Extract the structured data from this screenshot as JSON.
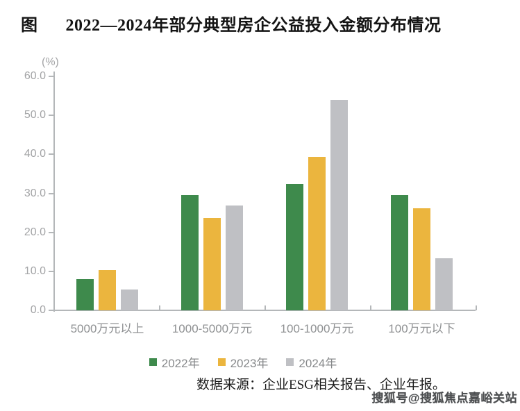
{
  "title": {
    "prefix": "图",
    "text": "2022—2024年部分典型房企公益投入金额分布情况"
  },
  "source_text": "数据来源：企业ESG相关报告、企业年报。",
  "watermark_text": "搜狐号@搜狐焦点嘉峪关站",
  "chart_data": {
    "type": "bar",
    "title": "2022—2024年部分典型房企公益投入金额分布情况",
    "unit_label": "(%)",
    "xlabel": "",
    "ylabel": "(%)",
    "categories": [
      "5000万元以上",
      "1000-5000万元",
      "100-1000万元",
      "100万元以下"
    ],
    "series": [
      {
        "name": "2022年",
        "color": "#3E8A4C",
        "values": [
          8.0,
          29.5,
          32.4,
          29.5
        ]
      },
      {
        "name": "2023年",
        "color": "#EBB53E",
        "values": [
          10.3,
          23.6,
          39.4,
          26.2
        ]
      },
      {
        "name": "2024年",
        "color": "#BFC0C4",
        "values": [
          5.4,
          26.9,
          54.0,
          13.3
        ]
      }
    ],
    "ylim": [
      0,
      60
    ],
    "ytick_labels": [
      "0.0",
      "10.0",
      "20.0",
      "30.0",
      "40.0",
      "50.0",
      "60.0"
    ],
    "grid": false,
    "legend_position": "bottom"
  },
  "colors": {
    "axis": "#b4b7b9",
    "axis_text": "#a3a4a6",
    "category_text": "#8f9193",
    "legend_text": "#87898b",
    "title_text": "#141414"
  }
}
